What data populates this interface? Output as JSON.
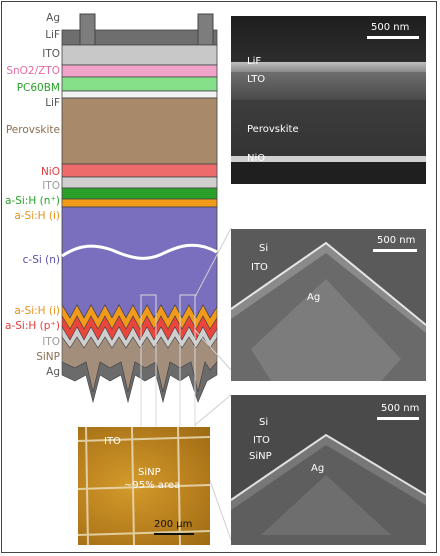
{
  "labels": {
    "ag_top": "Ag",
    "lif_top": "LiF",
    "ito_top": "ITO",
    "sno2": "SnO2/ZTO",
    "pcbm": "PC60BM",
    "lif_mid": "LiF",
    "perovskite": "Perovskite",
    "nio": "NiO",
    "ito_mid": "ITO",
    "asih_n": "a-Si:H (n⁺)",
    "asih_i_top": "a-Si:H (i)",
    "csi": "c-Si (n)",
    "asih_i_bot": "a-Si:H (i)",
    "asih_p": "a-Si:H (p⁺)",
    "ito_bot": "ITO",
    "sinp": "SiNP",
    "ag_bot": "Ag"
  },
  "panel1": {
    "scale": "500 nm",
    "lif": "LiF",
    "ito": "LTO",
    "perovskite": "Perovskite",
    "nio": "NiO"
  },
  "panel2": {
    "scale": "500 nm",
    "si": "Si",
    "ito": "ITO",
    "ag": "Ag"
  },
  "panel3": {
    "scale": "500 nm",
    "si": "Si",
    "ito": "ITO",
    "sinp": "SiNP",
    "ag": "Ag"
  },
  "optical": {
    "ito": "ITO",
    "sinp": "SiNP",
    "area": "~95% area",
    "scale": "200 μm"
  },
  "colors": {
    "ag": "#7d7d7d",
    "lif": "#cfcfcf",
    "ito": "#c7c7c7",
    "sno2": "#f0a0c8",
    "pcbm": "#86e08a",
    "perovskite": "#a8896a",
    "nio": "#ee6b6b",
    "asih_n": "#2aa02a",
    "asih_i": "#f29a1a",
    "csi": "#7a6fbe",
    "asih_p": "#e8453c",
    "sinp": "#a38e7c",
    "label_pink": "#e66aa3",
    "label_green": "#2aa02a",
    "label_orange": "#e8901a",
    "label_red": "#e03c3c",
    "label_grey": "#9a9a9a",
    "label_csi": "#5a4fa8"
  }
}
